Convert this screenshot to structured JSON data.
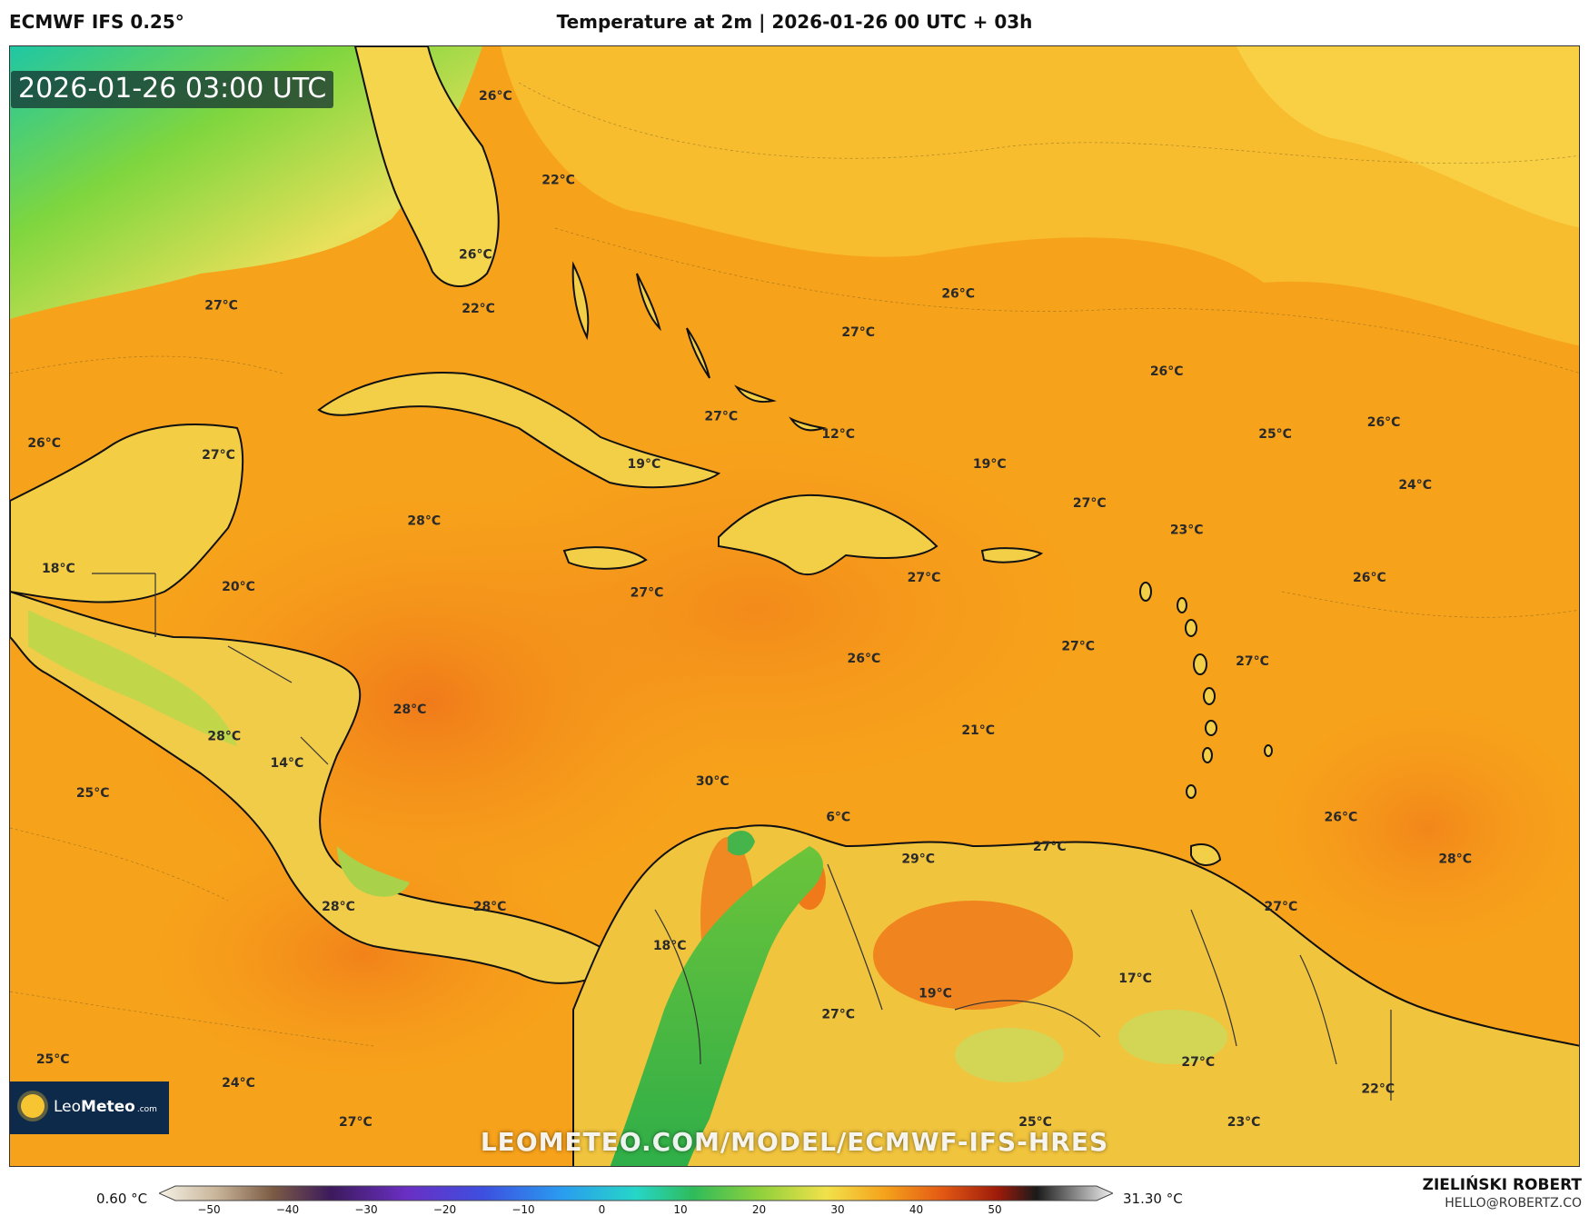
{
  "header": {
    "model": "ECMWF IFS 0.25°",
    "title": "Temperature at 2m | 2026-01-26 00 UTC + 03h"
  },
  "timestamp": "2026-01-26 03:00 UTC",
  "logo": {
    "name_a": "Leo",
    "name_b": "Meteo",
    "suffix": ".com"
  },
  "watermark": "LEOMETEO.COM/MODEL/ECMWF-IFS-HRES",
  "footer": {
    "min_value": "0.60 °C",
    "max_value": "31.30 °C",
    "author": "ZIELIŃSKI ROBERT",
    "email": "HELLO@ROBERTZ.CO"
  },
  "colorbar": {
    "ticks": [
      "−50",
      "−40",
      "−30",
      "−20",
      "−10",
      "0",
      "10",
      "20",
      "30",
      "40",
      "50"
    ]
  },
  "temperature_labels": [
    {
      "text": "26°C",
      "lon": -83.0,
      "lat": 28.7
    },
    {
      "text": "22°C",
      "lon": -80.8,
      "lat": 25.9
    },
    {
      "text": "26°C",
      "lon": -83.7,
      "lat": 23.4
    },
    {
      "text": "22°C",
      "lon": -83.6,
      "lat": 21.6
    },
    {
      "text": "27°C",
      "lon": -92.6,
      "lat": 21.7
    },
    {
      "text": "26°C",
      "lon": -66.8,
      "lat": 22.1
    },
    {
      "text": "27°C",
      "lon": -70.3,
      "lat": 20.8
    },
    {
      "text": "26°C",
      "lon": -59.5,
      "lat": 19.5
    },
    {
      "text": "26°C",
      "lon": -98.8,
      "lat": 17.1
    },
    {
      "text": "27°C",
      "lon": -92.7,
      "lat": 16.7
    },
    {
      "text": "27°C",
      "lon": -75.1,
      "lat": 18.0
    },
    {
      "text": "12°C",
      "lon": -71.0,
      "lat": 17.4
    },
    {
      "text": "19°C",
      "lon": -77.8,
      "lat": 16.4
    },
    {
      "text": "19°C",
      "lon": -65.7,
      "lat": 16.4
    },
    {
      "text": "25°C",
      "lon": -55.7,
      "lat": 17.4
    },
    {
      "text": "26°C",
      "lon": -51.9,
      "lat": 17.8
    },
    {
      "text": "24°C",
      "lon": -50.8,
      "lat": 15.7
    },
    {
      "text": "27°C",
      "lon": -62.2,
      "lat": 15.1
    },
    {
      "text": "28°C",
      "lon": -85.5,
      "lat": 14.5
    },
    {
      "text": "23°C",
      "lon": -58.8,
      "lat": 14.2
    },
    {
      "text": "18°C",
      "lon": -98.3,
      "lat": 12.9
    },
    {
      "text": "20°C",
      "lon": -92.0,
      "lat": 12.3
    },
    {
      "text": "27°C",
      "lon": -77.7,
      "lat": 12.1
    },
    {
      "text": "27°C",
      "lon": -68.0,
      "lat": 12.6
    },
    {
      "text": "26°C",
      "lon": -52.4,
      "lat": 12.6
    },
    {
      "text": "26°C",
      "lon": -70.1,
      "lat": 9.9
    },
    {
      "text": "27°C",
      "lon": -62.6,
      "lat": 10.3
    },
    {
      "text": "27°C",
      "lon": -56.5,
      "lat": 9.8
    },
    {
      "text": "28°C",
      "lon": -86.0,
      "lat": 8.2
    },
    {
      "text": "28°C",
      "lon": -92.5,
      "lat": 7.3
    },
    {
      "text": "21°C",
      "lon": -66.1,
      "lat": 7.5
    },
    {
      "text": "30°C",
      "lon": -75.4,
      "lat": 5.8
    },
    {
      "text": "14°C",
      "lon": -90.3,
      "lat": 6.4
    },
    {
      "text": "25°C",
      "lon": -97.1,
      "lat": 5.4
    },
    {
      "text": "6°C",
      "lon": -71.0,
      "lat": 4.6
    },
    {
      "text": "27°C",
      "lon": -63.6,
      "lat": 3.6
    },
    {
      "text": "26°C",
      "lon": -53.4,
      "lat": 4.6
    },
    {
      "text": "29°C",
      "lon": -68.2,
      "lat": 3.2
    },
    {
      "text": "28°C",
      "lon": -49.4,
      "lat": 3.2
    },
    {
      "text": "28°C",
      "lon": -88.5,
      "lat": 1.6
    },
    {
      "text": "28°C",
      "lon": -83.2,
      "lat": 1.6
    },
    {
      "text": "27°C",
      "lon": -55.5,
      "lat": 1.6
    },
    {
      "text": "18°C",
      "lon": -76.9,
      "lat": 0.3
    },
    {
      "text": "17°C",
      "lon": -60.6,
      "lat": -0.8
    },
    {
      "text": "19°C",
      "lon": -67.6,
      "lat": -1.3
    },
    {
      "text": "27°C",
      "lon": -71.0,
      "lat": -2.0
    },
    {
      "text": "25°C",
      "lon": -98.5,
      "lat": -3.5
    },
    {
      "text": "27°C",
      "lon": -58.4,
      "lat": -3.6
    },
    {
      "text": "24°C",
      "lon": -92.0,
      "lat": -4.3
    },
    {
      "text": "22°C",
      "lon": -52.1,
      "lat": -4.5
    },
    {
      "text": "27°C",
      "lon": -87.9,
      "lat": -5.6
    },
    {
      "text": "25°C",
      "lon": -64.1,
      "lat": -5.6
    },
    {
      "text": "23°C",
      "lon": -56.8,
      "lat": -5.6
    }
  ]
}
